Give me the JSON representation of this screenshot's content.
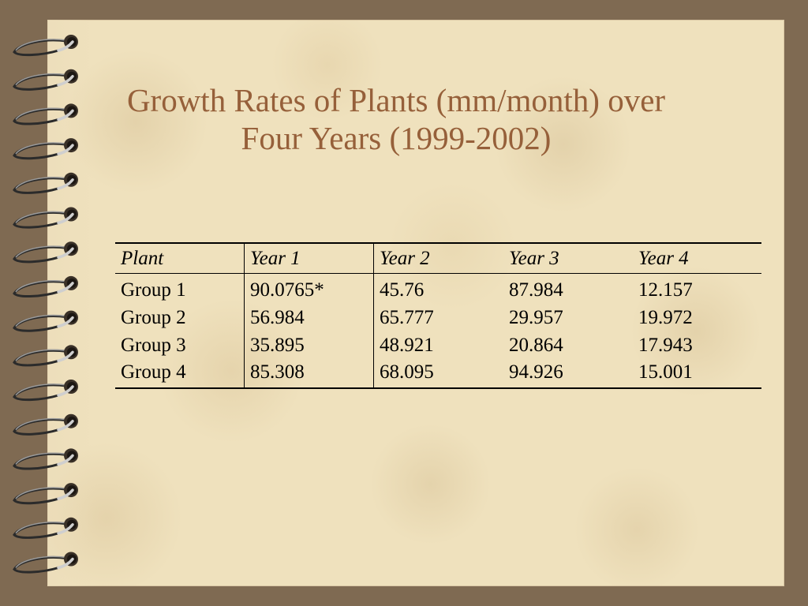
{
  "slide": {
    "title_line_1": "Growth Rates of Plants (mm/month) over",
    "title_line_2": "Four Years (1999-2002)"
  },
  "table": {
    "headers": [
      "Plant",
      "Year 1",
      "Year 2",
      "Year 3",
      "Year 4"
    ],
    "rows": [
      [
        "Group 1",
        "90.0765*",
        "45.76",
        "87.984",
        "12.157"
      ],
      [
        "Group 2",
        "56.984",
        "65.777",
        "29.957",
        "19.972"
      ],
      [
        "Group 3",
        "35.895",
        "48.921",
        "20.864",
        "17.943"
      ],
      [
        "Group 4",
        "85.308",
        "68.095",
        "94.926",
        "15.001"
      ]
    ]
  },
  "colors": {
    "background": "#7f6a52",
    "paper": "#efe1bd",
    "title": "#96603a"
  },
  "icons": [
    "spiral-binding-icon"
  ]
}
